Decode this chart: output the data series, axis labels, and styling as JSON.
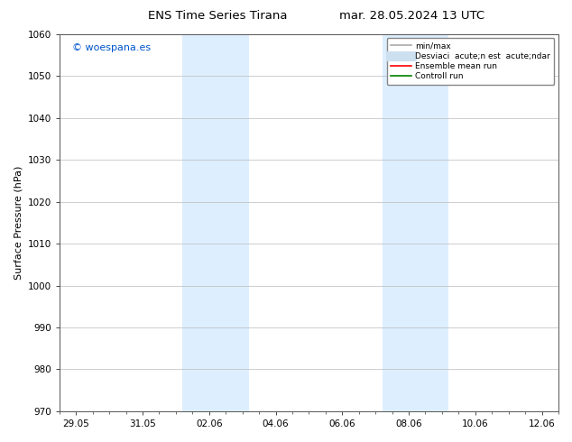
{
  "title_left": "ENS Time Series Tirana",
  "title_right": "mar. 28.05.2024 13 UTC",
  "ylabel": "Surface Pressure (hPa)",
  "ylim": [
    970,
    1060
  ],
  "yticks": [
    970,
    980,
    990,
    1000,
    1010,
    1020,
    1030,
    1040,
    1050,
    1060
  ],
  "xtick_labels": [
    "29.05",
    "31.05",
    "02.06",
    "04.06",
    "06.06",
    "08.06",
    "10.06",
    "12.06"
  ],
  "xtick_positions": [
    0,
    2,
    4,
    6,
    8,
    10,
    12,
    14
  ],
  "xlim": [
    -0.5,
    14.5
  ],
  "shaded_regions": [
    {
      "xmin": 3.2,
      "xmax": 5.2
    },
    {
      "xmin": 9.2,
      "xmax": 11.2
    }
  ],
  "shaded_color": "#ddeeff",
  "watermark_text": "© woespana.es",
  "watermark_color": "#0055cc",
  "legend_entries": [
    {
      "label": "min/max",
      "color": "#aaaaaa",
      "lw": 1.2,
      "type": "line"
    },
    {
      "label": "Desviaci  acute;n est  acute;ndar",
      "color": "#cce0f0",
      "lw": 8,
      "type": "line"
    },
    {
      "label": "Ensemble mean run",
      "color": "red",
      "lw": 1.2,
      "type": "line"
    },
    {
      "label": "Controll run",
      "color": "green",
      "lw": 1.2,
      "type": "line"
    }
  ],
  "bg_color": "#ffffff",
  "grid_color": "#bbbbbb",
  "title_fontsize": 9.5,
  "axis_label_fontsize": 8,
  "tick_fontsize": 7.5,
  "legend_fontsize": 6.5,
  "watermark_fontsize": 8
}
